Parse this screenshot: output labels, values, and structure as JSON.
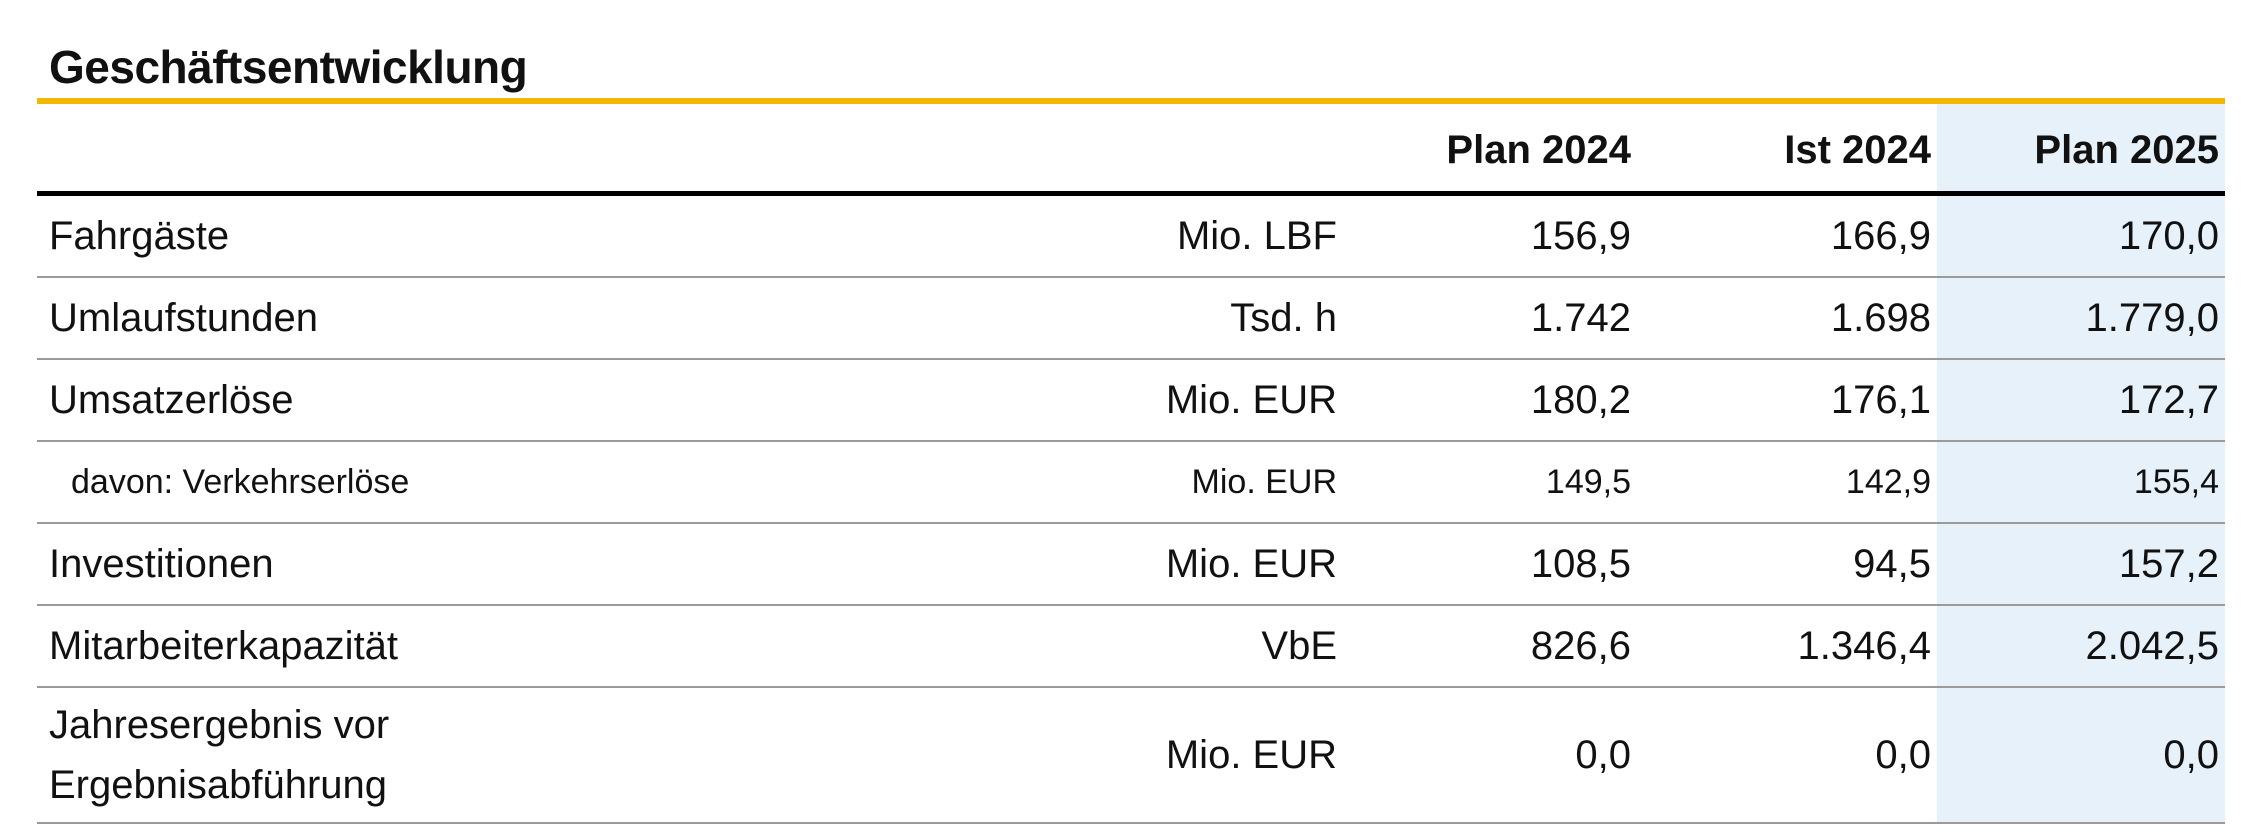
{
  "title": "Geschäftsentwicklung",
  "columns": [
    "Plan 2024",
    "Ist 2024",
    "Plan 2025"
  ],
  "rows": [
    {
      "label": "Fahrgäste",
      "unit": "Mio. LBF",
      "plan2024": "156,9",
      "ist2024": "166,9",
      "plan2025": "170,0"
    },
    {
      "label": "Umlaufstunden",
      "unit": "Tsd. h",
      "plan2024": "1.742",
      "ist2024": "1.698",
      "plan2025": "1.779,0"
    },
    {
      "label": "Umsatzerlöse",
      "unit": "Mio. EUR",
      "plan2024": "180,2",
      "ist2024": "176,1",
      "plan2025": "172,7"
    },
    {
      "label": "davon: Verkehrserlöse",
      "unit": "Mio. EUR",
      "plan2024": "149,5",
      "ist2024": "142,9",
      "plan2025": "155,4"
    },
    {
      "label": "Investitionen",
      "unit": "Mio. EUR",
      "plan2024": "108,5",
      "ist2024": "94,5",
      "plan2025": "157,2"
    },
    {
      "label": "Mitarbeiterkapazität",
      "unit": "VbE",
      "plan2024": "826,6",
      "ist2024": "1.346,4",
      "plan2025": "2.042,5"
    },
    {
      "label_lines": [
        "Jahresergebnis vor",
        "Ergebnisabführung"
      ],
      "unit": "Mio. EUR",
      "plan2024": "0,0",
      "ist2024": "0,0",
      "plan2025": "0,0"
    }
  ],
  "colors": {
    "title_rule": "#f2b705",
    "highlight_column": "#e6f1fa",
    "row_divider": "#9a9a9a"
  }
}
